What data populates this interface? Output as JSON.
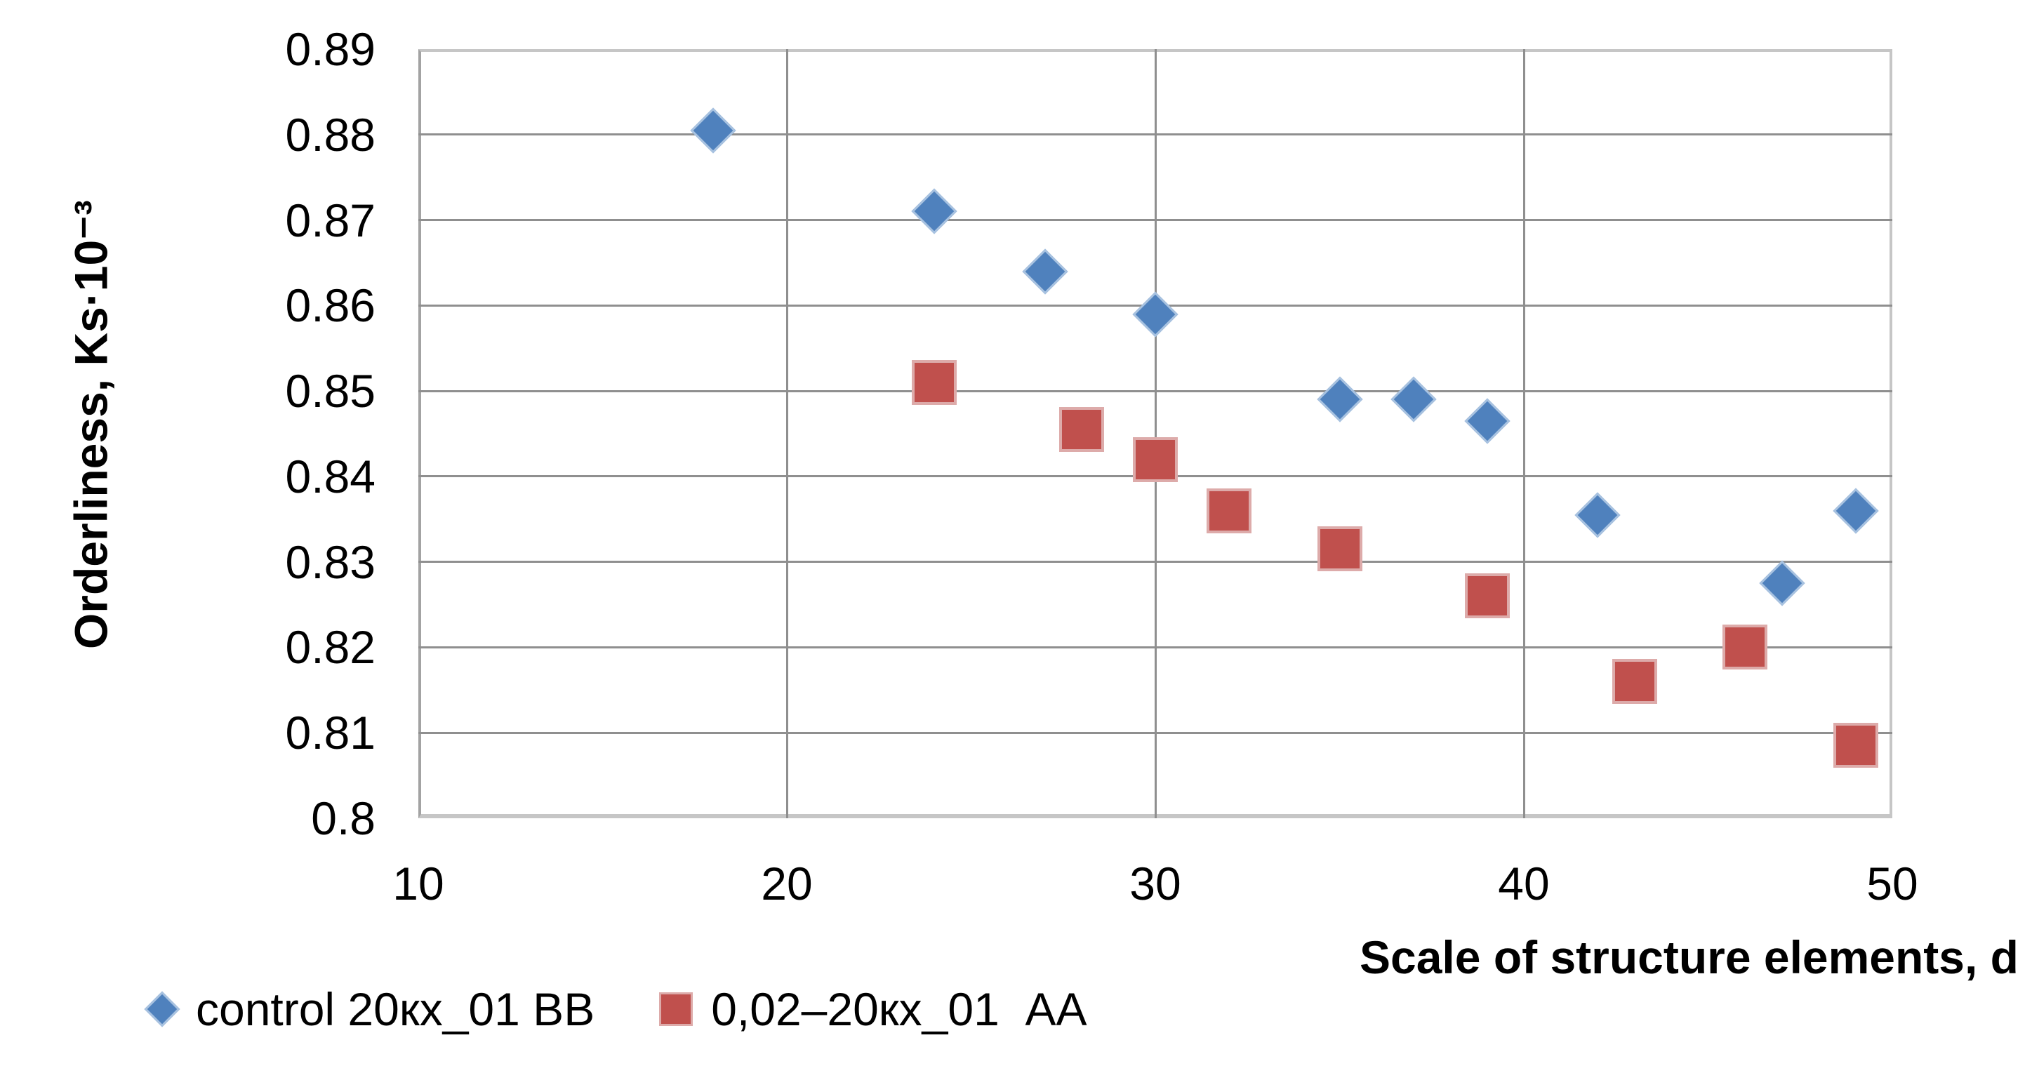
{
  "colors": {
    "series1": "#4f81bd",
    "series1_edge": "#a8c2e0",
    "series2": "#c0504d",
    "series2_edge": "#ddabaa",
    "gridline": "#8f8f8f",
    "border_light": "#c6c6c6",
    "axis_line": "#a3a3a3",
    "text": "#000000"
  },
  "chart_data": {
    "type": "scatter",
    "title": "",
    "xlabel": "Scale of structure elements, d",
    "ylabel": "Orderliness, Ks·10⁻³",
    "xlim": [
      10,
      50
    ],
    "ylim": [
      0.8,
      0.89
    ],
    "grid": true,
    "legend_position": "bottom-left",
    "x_ticks": [
      {
        "label": "10",
        "value": 10
      },
      {
        "label": "20",
        "value": 20
      },
      {
        "label": "30",
        "value": 30
      },
      {
        "label": "40",
        "value": 40
      },
      {
        "label": "50",
        "value": 50
      }
    ],
    "y_ticks": [
      {
        "label": "0.8",
        "value": 0.8
      },
      {
        "label": "0.81",
        "value": 0.81
      },
      {
        "label": "0.82",
        "value": 0.82
      },
      {
        "label": "0.83",
        "value": 0.83
      },
      {
        "label": "0.84",
        "value": 0.84
      },
      {
        "label": "0.85",
        "value": 0.85
      },
      {
        "label": "0.86",
        "value": 0.86
      },
      {
        "label": "0.87",
        "value": 0.87
      },
      {
        "label": "0.88",
        "value": 0.88
      },
      {
        "label": "0.89",
        "value": 0.89
      }
    ],
    "series": [
      {
        "name": "control 20кх_01 BB",
        "marker": "diamond",
        "color": "#4f81bd",
        "points": [
          [
            18,
            0.8805
          ],
          [
            24,
            0.871
          ],
          [
            27,
            0.864
          ],
          [
            30,
            0.859
          ],
          [
            35,
            0.849
          ],
          [
            37,
            0.849
          ],
          [
            39,
            0.8465
          ],
          [
            42,
            0.8355
          ],
          [
            47,
            0.8275
          ],
          [
            49,
            0.836
          ]
        ]
      },
      {
        "name": "0,02–20кх_01  AA",
        "marker": "square",
        "color": "#c0504d",
        "points": [
          [
            24,
            0.851
          ],
          [
            28,
            0.8455
          ],
          [
            30,
            0.842
          ],
          [
            32,
            0.836
          ],
          [
            35,
            0.8315
          ],
          [
            39,
            0.826
          ],
          [
            43,
            0.816
          ],
          [
            46,
            0.82
          ],
          [
            49,
            0.8085
          ]
        ]
      }
    ]
  }
}
